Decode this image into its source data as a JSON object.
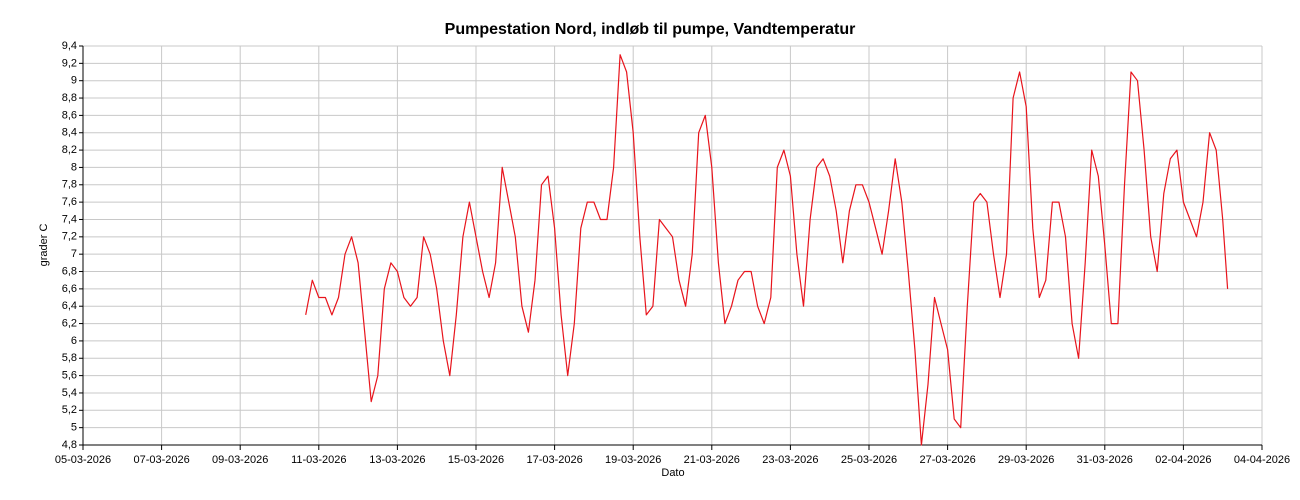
{
  "chart_data": {
    "type": "line",
    "title": "Pumpestation Nord, indløb til pumpe, Vandtemperatur",
    "x_label": "Dato",
    "y_label": "grader C",
    "color": "#e8141c",
    "grid": true,
    "xlim": [
      "2026-03-05",
      "2026-04-04"
    ],
    "xticks": [
      {
        "value": "2026-03-05",
        "label": "05-03-2026"
      },
      {
        "value": "2026-03-07",
        "label": "07-03-2026"
      },
      {
        "value": "2026-03-09",
        "label": "09-03-2026"
      },
      {
        "value": "2026-03-11",
        "label": "11-03-2026"
      },
      {
        "value": "2026-03-13",
        "label": "13-03-2026"
      },
      {
        "value": "2026-03-15",
        "label": "15-03-2026"
      },
      {
        "value": "2026-03-17",
        "label": "17-03-2026"
      },
      {
        "value": "2026-03-19",
        "label": "19-03-2026"
      },
      {
        "value": "2026-03-21",
        "label": "21-03-2026"
      },
      {
        "value": "2026-03-23",
        "label": "23-03-2026"
      },
      {
        "value": "2026-03-25",
        "label": "25-03-2026"
      },
      {
        "value": "2026-03-27",
        "label": "27-03-2026"
      },
      {
        "value": "2026-03-29",
        "label": "29-03-2026"
      },
      {
        "value": "2026-03-31",
        "label": "31-03-2026"
      },
      {
        "value": "2026-04-02",
        "label": "02-04-2026"
      },
      {
        "value": "2026-04-04",
        "label": "04-04-2026"
      }
    ],
    "ylim": [
      4.8,
      9.4
    ],
    "yticks": [
      {
        "value": 4.8,
        "label": "4,8"
      },
      5,
      {
        "value": 5.2,
        "label": "5,2"
      },
      {
        "value": 5.4,
        "label": "5,4"
      },
      {
        "value": 5.6,
        "label": "5,6"
      },
      {
        "value": 5.8,
        "label": "5,8"
      },
      6,
      {
        "value": 6.2,
        "label": "6,2"
      },
      {
        "value": 6.4,
        "label": "6,4"
      },
      {
        "value": 6.6,
        "label": "6,6"
      },
      {
        "value": 6.8,
        "label": "6,8"
      },
      7,
      {
        "value": 7.2,
        "label": "7,2"
      },
      {
        "value": 7.4,
        "label": "7,4"
      },
      {
        "value": 7.6,
        "label": "7,6"
      },
      {
        "value": 7.8,
        "label": "7,8"
      },
      8,
      {
        "value": 8.2,
        "label": "8,2"
      },
      {
        "value": 8.4,
        "label": "8,4"
      },
      {
        "value": 8.6,
        "label": "8,6"
      },
      {
        "value": 8.8,
        "label": "8,8"
      },
      9,
      {
        "value": 9.2,
        "label": "9,2"
      },
      {
        "value": 9.4,
        "label": "9,4"
      }
    ],
    "x": [
      "2026-03-10T16:00",
      "2026-03-10T20:00",
      "2026-03-11T00:00",
      "2026-03-11T04:00",
      "2026-03-11T08:00",
      "2026-03-11T12:00",
      "2026-03-11T16:00",
      "2026-03-11T20:00",
      "2026-03-12T00:00",
      "2026-03-12T04:00",
      "2026-03-12T08:00",
      "2026-03-12T12:00",
      "2026-03-12T16:00",
      "2026-03-12T20:00",
      "2026-03-13T00:00",
      "2026-03-13T04:00",
      "2026-03-13T08:00",
      "2026-03-13T12:00",
      "2026-03-13T16:00",
      "2026-03-13T20:00",
      "2026-03-14T00:00",
      "2026-03-14T04:00",
      "2026-03-14T08:00",
      "2026-03-14T12:00",
      "2026-03-14T16:00",
      "2026-03-14T20:00",
      "2026-03-15T00:00",
      "2026-03-15T04:00",
      "2026-03-15T08:00",
      "2026-03-15T12:00",
      "2026-03-15T16:00",
      "2026-03-15T20:00",
      "2026-03-16T00:00",
      "2026-03-16T04:00",
      "2026-03-16T08:00",
      "2026-03-16T12:00",
      "2026-03-16T16:00",
      "2026-03-16T20:00",
      "2026-03-17T00:00",
      "2026-03-17T04:00",
      "2026-03-17T08:00",
      "2026-03-17T12:00",
      "2026-03-17T16:00",
      "2026-03-17T20:00",
      "2026-03-18T00:00",
      "2026-03-18T04:00",
      "2026-03-18T08:00",
      "2026-03-18T12:00",
      "2026-03-18T16:00",
      "2026-03-18T20:00",
      "2026-03-19T00:00",
      "2026-03-19T04:00",
      "2026-03-19T08:00",
      "2026-03-19T12:00",
      "2026-03-19T16:00",
      "2026-03-19T20:00",
      "2026-03-20T00:00",
      "2026-03-20T04:00",
      "2026-03-20T08:00",
      "2026-03-20T12:00",
      "2026-03-20T16:00",
      "2026-03-20T20:00",
      "2026-03-21T00:00",
      "2026-03-21T04:00",
      "2026-03-21T08:00",
      "2026-03-21T12:00",
      "2026-03-21T16:00",
      "2026-03-21T20:00",
      "2026-03-22T00:00",
      "2026-03-22T04:00",
      "2026-03-22T08:00",
      "2026-03-22T12:00",
      "2026-03-22T16:00",
      "2026-03-22T20:00",
      "2026-03-23T00:00",
      "2026-03-23T04:00",
      "2026-03-23T08:00",
      "2026-03-23T12:00",
      "2026-03-23T16:00",
      "2026-03-23T20:00",
      "2026-03-24T00:00",
      "2026-03-24T04:00",
      "2026-03-24T08:00",
      "2026-03-24T12:00",
      "2026-03-24T16:00",
      "2026-03-24T20:00",
      "2026-03-25T00:00",
      "2026-03-25T04:00",
      "2026-03-25T08:00",
      "2026-03-25T12:00",
      "2026-03-25T16:00",
      "2026-03-25T20:00",
      "2026-03-26T00:00",
      "2026-03-26T04:00",
      "2026-03-26T08:00",
      "2026-03-26T12:00",
      "2026-03-26T16:00",
      "2026-03-26T20:00",
      "2026-03-27T00:00",
      "2026-03-27T04:00",
      "2026-03-27T08:00",
      "2026-03-27T12:00",
      "2026-03-27T16:00",
      "2026-03-27T20:00",
      "2026-03-28T00:00",
      "2026-03-28T04:00",
      "2026-03-28T08:00",
      "2026-03-28T12:00",
      "2026-03-28T16:00",
      "2026-03-28T20:00",
      "2026-03-29T00:00",
      "2026-03-29T04:00",
      "2026-03-29T08:00",
      "2026-03-29T12:00",
      "2026-03-29T16:00",
      "2026-03-29T20:00",
      "2026-03-30T00:00",
      "2026-03-30T04:00",
      "2026-03-30T08:00",
      "2026-03-30T12:00",
      "2026-03-30T16:00",
      "2026-03-30T20:00",
      "2026-03-31T00:00",
      "2026-03-31T04:00",
      "2026-03-31T08:00",
      "2026-03-31T12:00",
      "2026-03-31T16:00",
      "2026-03-31T20:00",
      "2026-04-01T00:00",
      "2026-04-01T04:00",
      "2026-04-01T08:00",
      "2026-04-01T12:00",
      "2026-04-01T16:00",
      "2026-04-01T20:00",
      "2026-04-02T00:00",
      "2026-04-02T04:00",
      "2026-04-02T08:00",
      "2026-04-02T12:00",
      "2026-04-02T16:00",
      "2026-04-02T20:00",
      "2026-04-03T00:00",
      "2026-04-03T03:00"
    ],
    "values": [
      6.3,
      6.7,
      6.5,
      6.5,
      6.3,
      6.5,
      7.0,
      7.2,
      6.9,
      6.1,
      5.3,
      5.6,
      6.6,
      6.9,
      6.8,
      6.5,
      6.4,
      6.5,
      7.2,
      7.0,
      6.6,
      6.0,
      5.6,
      6.3,
      7.2,
      7.6,
      7.2,
      6.8,
      6.5,
      6.9,
      8.0,
      7.6,
      7.2,
      6.4,
      6.1,
      6.7,
      7.8,
      7.9,
      7.3,
      6.3,
      5.6,
      6.2,
      7.3,
      7.6,
      7.6,
      7.4,
      7.4,
      8.0,
      9.3,
      9.1,
      8.4,
      7.2,
      6.3,
      6.4,
      7.4,
      7.3,
      7.2,
      6.7,
      6.4,
      7.0,
      8.4,
      8.6,
      8.0,
      6.9,
      6.2,
      6.4,
      6.7,
      6.8,
      6.8,
      6.4,
      6.2,
      6.5,
      8.0,
      8.2,
      7.9,
      7.0,
      6.4,
      7.4,
      8.0,
      8.1,
      7.9,
      7.5,
      6.9,
      7.5,
      7.8,
      7.8,
      7.6,
      7.3,
      7.0,
      7.5,
      8.1,
      7.6,
      6.8,
      5.9,
      4.8,
      5.5,
      6.5,
      6.2,
      5.9,
      5.1,
      5.0,
      6.4,
      7.6,
      7.7,
      7.6,
      7.0,
      6.5,
      7.0,
      8.8,
      9.1,
      8.7,
      7.3,
      6.5,
      6.7,
      7.6,
      7.6,
      7.2,
      6.2,
      5.8,
      6.9,
      8.2,
      7.9,
      7.1,
      6.2,
      6.2,
      7.8,
      9.1,
      9.0,
      8.2,
      7.2,
      6.8,
      7.7,
      8.1,
      8.2,
      7.6,
      7.4,
      7.2,
      7.6,
      8.4,
      8.2,
      7.4,
      6.6
    ]
  }
}
